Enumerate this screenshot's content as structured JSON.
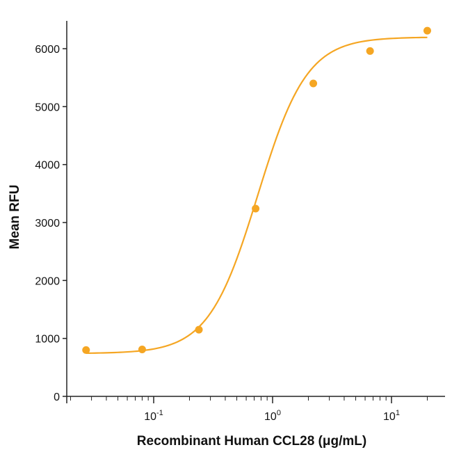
{
  "chart_data": {
    "type": "scatter",
    "xlabel": "Recombinant Human CCL28 (μg/mL)",
    "ylabel": "Mean RFU",
    "xscale": "log",
    "xlim": [
      0.02,
      35
    ],
    "ylim": [
      0,
      6500
    ],
    "x_ticks": [
      {
        "value": 0.1,
        "base": "10",
        "exp": "-1"
      },
      {
        "value": 1,
        "base": "10",
        "exp": "0"
      },
      {
        "value": 10,
        "base": "10",
        "exp": "1"
      }
    ],
    "y_ticks": [
      0,
      1000,
      2000,
      3000,
      4000,
      5000,
      6000
    ],
    "grid": false,
    "color": "#F5A623",
    "series": [
      {
        "points": [
          {
            "x": 0.027,
            "y": 800
          },
          {
            "x": 0.08,
            "y": 810
          },
          {
            "x": 0.24,
            "y": 1150
          },
          {
            "x": 0.72,
            "y": 3240
          },
          {
            "x": 2.2,
            "y": 5400
          },
          {
            "x": 6.6,
            "y": 5960
          },
          {
            "x": 20,
            "y": 6310
          }
        ]
      }
    ],
    "fit": {
      "model": "4PL",
      "bottom": 740,
      "top": 6200,
      "ec50": 0.75,
      "hill": 2.1,
      "x_range": [
        0.027,
        20
      ]
    }
  }
}
